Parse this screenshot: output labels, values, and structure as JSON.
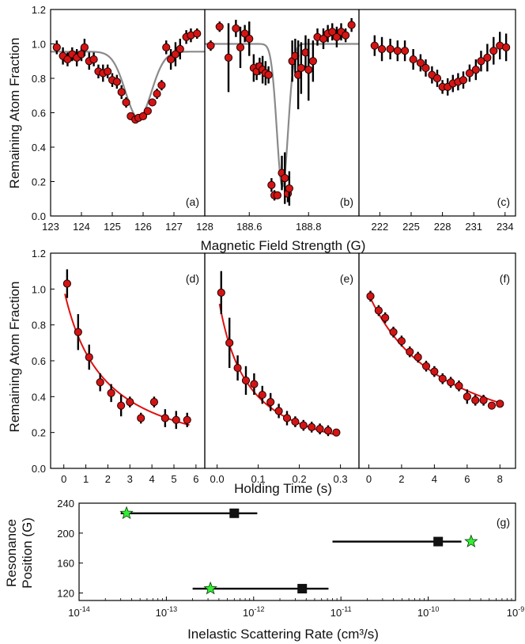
{
  "colors": {
    "marker": "#d41414",
    "markerEdge": "#200000",
    "fit": "#e01010",
    "guide": "#8a8a8a",
    "star": "#33ee33",
    "square": "#111111"
  },
  "labels": {
    "top_ylabel": "Remaining Atom Fraction",
    "top_xlabel": "Magnetic Field Strength (G)",
    "mid_ylabel": "Remaining Atom Fraction",
    "mid_xlabel": "Holding Time (s)",
    "bot_ylabel_1": "Resonance",
    "bot_ylabel_2": "Position (G)",
    "bot_xlabel": "Inelastic Scattering Rate (cm³/s)"
  },
  "chart_data": [
    {
      "id": "a",
      "panel_label": "(a)",
      "type": "scatter",
      "xlim": [
        123,
        128
      ],
      "ylim": [
        0,
        1.2
      ],
      "xticks": [
        123,
        124,
        125,
        126,
        127,
        128
      ],
      "yticks": [
        0,
        0.2,
        0.4,
        0.6,
        0.8,
        1.0,
        1.2
      ],
      "xticklabels": [
        "123",
        "124",
        "125",
        "126",
        "127",
        "128"
      ],
      "yticklabels": [
        "0.0",
        "0.2",
        "0.4",
        "0.6",
        "0.8",
        "1.0",
        "1.2"
      ],
      "points": [
        [
          123.2,
          0.98,
          0.04
        ],
        [
          123.4,
          0.93,
          0.05
        ],
        [
          123.55,
          0.91,
          0.04
        ],
        [
          123.7,
          0.94,
          0.04
        ],
        [
          123.85,
          0.92,
          0.05
        ],
        [
          124.0,
          0.94,
          0.04
        ],
        [
          124.1,
          0.98,
          0.05
        ],
        [
          124.25,
          0.9,
          0.05
        ],
        [
          124.4,
          0.91,
          0.04
        ],
        [
          124.55,
          0.84,
          0.04
        ],
        [
          124.7,
          0.83,
          0.05
        ],
        [
          124.85,
          0.84,
          0.04
        ],
        [
          125.0,
          0.79,
          0.04
        ],
        [
          125.15,
          0.78,
          0.04
        ],
        [
          125.3,
          0.72,
          0.04
        ],
        [
          125.45,
          0.66,
          0.03
        ],
        [
          125.6,
          0.58,
          0.02
        ],
        [
          125.75,
          0.56,
          0.02
        ],
        [
          125.85,
          0.57,
          0.02
        ],
        [
          126.0,
          0.58,
          0.02
        ],
        [
          126.15,
          0.61,
          0.02
        ],
        [
          126.3,
          0.66,
          0.02
        ],
        [
          126.45,
          0.71,
          0.03
        ],
        [
          126.6,
          0.76,
          0.03
        ],
        [
          126.75,
          0.98,
          0.04
        ],
        [
          126.9,
          0.91,
          0.06
        ],
        [
          127.05,
          0.94,
          0.07
        ],
        [
          127.2,
          0.97,
          0.06
        ],
        [
          127.4,
          1.04,
          0.04
        ],
        [
          127.55,
          1.05,
          0.04
        ],
        [
          127.75,
          1.06,
          0.03
        ]
      ],
      "fit_type": "gaussian_dip",
      "fit": {
        "baseline": 0.955,
        "depth": 0.385,
        "center": 125.85,
        "width": 0.42,
        "domain": [
          123,
          128
        ]
      }
    },
    {
      "id": "b",
      "panel_label": "(b)",
      "type": "scatter",
      "xlim": [
        188.45,
        188.97
      ],
      "ylim": [
        0,
        1.2
      ],
      "xticks": [
        188.6,
        188.8
      ],
      "xticklabels": [
        "188.6",
        "188.8"
      ],
      "points": [
        [
          188.47,
          0.99,
          0.03
        ],
        [
          188.5,
          1.1,
          0.03
        ],
        [
          188.53,
          0.92,
          0.2
        ],
        [
          188.555,
          1.09,
          0.05
        ],
        [
          188.57,
          0.98,
          0.12
        ],
        [
          188.585,
          1.06,
          0.05
        ],
        [
          188.6,
          1.03,
          0.1
        ],
        [
          188.615,
          0.86,
          0.08
        ],
        [
          188.625,
          0.84,
          0.05
        ],
        [
          188.635,
          0.87,
          0.05
        ],
        [
          188.645,
          0.85,
          0.08
        ],
        [
          188.655,
          0.83,
          0.07
        ],
        [
          188.665,
          0.82,
          0.05
        ],
        [
          188.675,
          0.18,
          0.04
        ],
        [
          188.685,
          0.12,
          0.03
        ],
        [
          188.695,
          0.12,
          0.02
        ],
        [
          188.71,
          0.25,
          0.1
        ],
        [
          188.72,
          0.22,
          0.15
        ],
        [
          188.73,
          0.13,
          0.05
        ],
        [
          188.735,
          0.16,
          0.1
        ],
        [
          188.745,
          0.9,
          0.12
        ],
        [
          188.755,
          0.93,
          0.1
        ],
        [
          188.765,
          0.82,
          0.2
        ],
        [
          188.775,
          0.86,
          0.15
        ],
        [
          188.79,
          0.95,
          0.1
        ],
        [
          188.8,
          0.85,
          0.18
        ],
        [
          188.815,
          0.9,
          0.12
        ],
        [
          188.83,
          1.04,
          0.05
        ],
        [
          188.85,
          1.03,
          0.06
        ],
        [
          188.865,
          1.06,
          0.05
        ],
        [
          188.88,
          1.07,
          0.05
        ],
        [
          188.895,
          1.04,
          0.06
        ],
        [
          188.91,
          1.07,
          0.05
        ],
        [
          188.925,
          1.05,
          0.04
        ],
        [
          188.945,
          1.11,
          0.04
        ]
      ],
      "fit_type": "gaussian_dip",
      "fit": {
        "baseline": 1.0,
        "depth": 0.83,
        "center": 188.712,
        "width": 0.019,
        "domain": [
          188.45,
          188.97
        ]
      }
    },
    {
      "id": "c",
      "panel_label": "(c)",
      "type": "scatter",
      "xlim": [
        220,
        235
      ],
      "ylim": [
        0,
        1.2
      ],
      "xticks": [
        222,
        225,
        228,
        231,
        234
      ],
      "xticklabels": [
        "222",
        "225",
        "228",
        "231",
        "234"
      ],
      "points": [
        [
          221.5,
          0.99,
          0.06
        ],
        [
          222.2,
          0.97,
          0.07
        ],
        [
          223.0,
          0.97,
          0.06
        ],
        [
          223.7,
          0.96,
          0.06
        ],
        [
          224.4,
          0.96,
          0.06
        ],
        [
          225.2,
          0.91,
          0.06
        ],
        [
          225.9,
          0.89,
          0.05
        ],
        [
          226.4,
          0.86,
          0.05
        ],
        [
          227.0,
          0.82,
          0.05
        ],
        [
          227.5,
          0.8,
          0.05
        ],
        [
          228.0,
          0.75,
          0.04
        ],
        [
          228.5,
          0.75,
          0.05
        ],
        [
          229.0,
          0.77,
          0.05
        ],
        [
          229.5,
          0.78,
          0.05
        ],
        [
          230.0,
          0.79,
          0.05
        ],
        [
          230.6,
          0.83,
          0.05
        ],
        [
          231.2,
          0.85,
          0.06
        ],
        [
          231.7,
          0.9,
          0.06
        ],
        [
          232.3,
          0.92,
          0.08
        ],
        [
          232.9,
          0.96,
          0.08
        ],
        [
          233.5,
          0.99,
          0.08
        ],
        [
          234.1,
          0.98,
          0.08
        ]
      ]
    },
    {
      "id": "d",
      "panel_label": "(d)",
      "type": "scatter",
      "xlim": [
        -0.6,
        6.4
      ],
      "ylim": [
        0,
        1.2
      ],
      "xticks": [
        0,
        1,
        2,
        3,
        4,
        5,
        6
      ],
      "xticklabels": [
        "0",
        "1",
        "2",
        "3",
        "4",
        "5",
        "6"
      ],
      "yticks": [
        0,
        0.2,
        0.4,
        0.6,
        0.8,
        1.0,
        1.2
      ],
      "yticklabels": [
        "0.0",
        "0.2",
        "0.4",
        "0.6",
        "0.8",
        "1.0",
        "1.2"
      ],
      "points": [
        [
          0.15,
          1.03,
          0.08
        ],
        [
          0.65,
          0.76,
          0.1
        ],
        [
          1.15,
          0.62,
          0.07
        ],
        [
          1.65,
          0.48,
          0.05
        ],
        [
          2.15,
          0.42,
          0.05
        ],
        [
          2.6,
          0.35,
          0.06
        ],
        [
          3.0,
          0.37,
          0.03
        ],
        [
          3.5,
          0.28,
          0.03
        ],
        [
          4.1,
          0.37,
          0.03
        ],
        [
          4.6,
          0.28,
          0.05
        ],
        [
          5.1,
          0.27,
          0.05
        ],
        [
          5.6,
          0.27,
          0.04
        ]
      ],
      "fit_type": "hyperbolic",
      "fit": {
        "N0": 1.0,
        "k": 0.55,
        "domain": [
          0.05,
          5.7
        ]
      }
    },
    {
      "id": "e",
      "panel_label": "(e)",
      "type": "scatter",
      "xlim": [
        -0.03,
        0.345
      ],
      "ylim": [
        0,
        1.2
      ],
      "xticks": [
        0,
        0.1,
        0.2,
        0.3
      ],
      "xticklabels": [
        "0.0",
        "0.1",
        "0.2",
        "0.3"
      ],
      "points": [
        [
          0.01,
          0.98,
          0.12
        ],
        [
          0.03,
          0.7,
          0.14
        ],
        [
          0.05,
          0.56,
          0.07
        ],
        [
          0.07,
          0.49,
          0.08
        ],
        [
          0.09,
          0.47,
          0.06
        ],
        [
          0.11,
          0.41,
          0.05
        ],
        [
          0.13,
          0.37,
          0.05
        ],
        [
          0.15,
          0.32,
          0.04
        ],
        [
          0.17,
          0.28,
          0.04
        ],
        [
          0.19,
          0.26,
          0.03
        ],
        [
          0.21,
          0.24,
          0.03
        ],
        [
          0.23,
          0.23,
          0.03
        ],
        [
          0.25,
          0.22,
          0.03
        ],
        [
          0.27,
          0.21,
          0.03
        ],
        [
          0.29,
          0.2,
          0.02
        ]
      ],
      "fit_type": "hyperbolic",
      "fit": {
        "N0": 1.0,
        "k": 15.0,
        "domain": [
          0.006,
          0.295
        ]
      }
    },
    {
      "id": "f",
      "panel_label": "(f)",
      "type": "scatter",
      "xlim": [
        -0.6,
        8.95
      ],
      "ylim": [
        0,
        1.2
      ],
      "xticks": [
        0,
        2,
        4,
        6,
        8
      ],
      "xticklabels": [
        "0",
        "2",
        "4",
        "6",
        "8"
      ],
      "points": [
        [
          0.1,
          0.96,
          0.03
        ],
        [
          0.6,
          0.88,
          0.03
        ],
        [
          1.0,
          0.84,
          0.03
        ],
        [
          1.5,
          0.76,
          0.03
        ],
        [
          2.0,
          0.71,
          0.03
        ],
        [
          2.5,
          0.65,
          0.03
        ],
        [
          3.0,
          0.62,
          0.03
        ],
        [
          3.5,
          0.57,
          0.03
        ],
        [
          4.0,
          0.54,
          0.03
        ],
        [
          4.5,
          0.5,
          0.03
        ],
        [
          5.0,
          0.48,
          0.03
        ],
        [
          5.5,
          0.46,
          0.03
        ],
        [
          6.0,
          0.4,
          0.04
        ],
        [
          6.5,
          0.38,
          0.03
        ],
        [
          7.0,
          0.38,
          0.03
        ],
        [
          7.5,
          0.35,
          0.02
        ],
        [
          8.0,
          0.36,
          0.02
        ]
      ],
      "fit_type": "hyperbolic",
      "fit": {
        "N0": 0.97,
        "k": 0.207,
        "domain": [
          0.0,
          8.1
        ]
      }
    },
    {
      "id": "g",
      "panel_label": "(g)",
      "type": "scatter",
      "xscale": "log",
      "xlim": [
        1e-14,
        1e-09
      ],
      "ylim": [
        110,
        240
      ],
      "xticks": [
        1e-14,
        1e-13,
        1e-12,
        1e-11,
        1e-10,
        1e-09
      ],
      "xticklabels": [
        [
          "10",
          "-14"
        ],
        [
          "10",
          "-13"
        ],
        [
          "10",
          "-12"
        ],
        [
          "10",
          "-11"
        ],
        [
          "10",
          "-10"
        ],
        [
          "10",
          "-9"
        ]
      ],
      "yticks": [
        120,
        160,
        200,
        240
      ],
      "yticklabels": [
        "120",
        "160",
        "200",
        "240"
      ],
      "squares": [
        [
          6e-13,
          226.5,
          3e-14,
          1.1e-12
        ],
        [
          1.3e-10,
          188.7,
          8e-12,
          2.4e-10
        ],
        [
          3.6e-12,
          125.8,
          2e-13,
          7.2e-12
        ]
      ],
      "stars": [
        [
          3.5e-14,
          226.5
        ],
        [
          3.1e-10,
          188.7
        ],
        [
          3.2e-13,
          125.8
        ]
      ]
    }
  ]
}
